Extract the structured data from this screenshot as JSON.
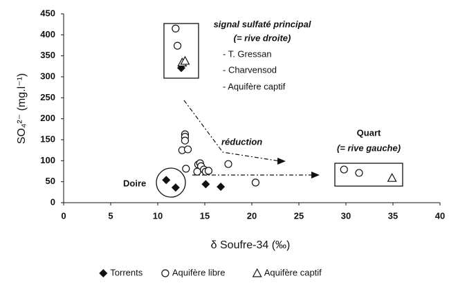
{
  "chart_data": {
    "type": "scatter",
    "xlabel": "δ Soufre-34 (‰)",
    "ylabel": "SO₄²⁻ (mg.l⁻¹)",
    "xlim": [
      0,
      40
    ],
    "xticks": [
      0,
      5,
      10,
      15,
      20,
      25,
      30,
      35,
      40
    ],
    "ylim": [
      0,
      450
    ],
    "yticks": [
      0,
      50,
      100,
      150,
      200,
      250,
      300,
      350,
      400,
      450
    ],
    "grid": false,
    "legend": "bottom",
    "annotations": [
      "signal sulfaté principal",
      "(= rive droite)",
      "- T. Gressan",
      "- Charvensod",
      "- Aquifère captif",
      "réduction",
      "Quart",
      "(= rive gauche)",
      "Doire"
    ],
    "series": [
      {
        "name": "Torrents",
        "marker": "diamond",
        "color": "#111111",
        "x": [
          12.5,
          10.9,
          11.9,
          15.1,
          16.7
        ],
        "values": [
          321,
          54,
          36,
          44,
          38
        ]
      },
      {
        "name": "Aquifère libre",
        "marker": "circle",
        "color": "#111111",
        "x": [
          11.9,
          12.1,
          12.9,
          12.9,
          12.9,
          12.6,
          13.2,
          13.0,
          14.3,
          14.5,
          14.6,
          14.2,
          14.9,
          15.1,
          15.4,
          17.5,
          20.4,
          29.8,
          31.4
        ],
        "values": [
          415,
          374,
          163,
          157,
          148,
          125,
          127,
          81,
          91,
          94,
          87,
          74,
          79,
          74,
          76,
          92,
          48,
          79,
          71
        ]
      },
      {
        "name": "Aquifère captif",
        "marker": "triangle",
        "color": "#111111",
        "x": [
          12.6,
          12.9,
          34.9
        ],
        "values": [
          334,
          338,
          59
        ]
      }
    ]
  }
}
